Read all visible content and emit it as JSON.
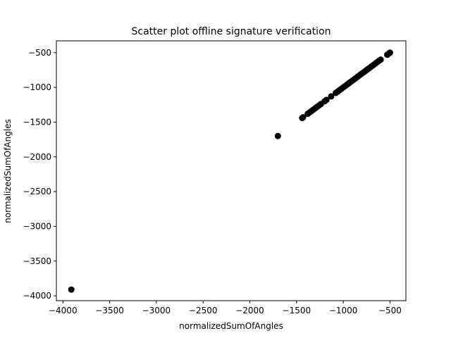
{
  "chart_data": {
    "type": "scatter",
    "title": "Scatter plot offline signature verification",
    "xlabel": "normalizedSumOfAngles",
    "ylabel": "normalizedSumOfAngles",
    "xlim": [
      -4070,
      -330
    ],
    "ylim": [
      -4070,
      -330
    ],
    "xticks": [
      -4000,
      -3500,
      -3000,
      -2500,
      -2000,
      -1500,
      -1000,
      -500
    ],
    "yticks": [
      -4000,
      -3500,
      -3000,
      -2500,
      -2000,
      -1500,
      -1000,
      -500
    ],
    "grid": false,
    "marker_color": "#000000",
    "points": [
      [
        -3910,
        -3910
      ],
      [
        -1700,
        -1700
      ],
      [
        -1440,
        -1440
      ],
      [
        -1430,
        -1430
      ],
      [
        -1380,
        -1380
      ],
      [
        -1360,
        -1360
      ],
      [
        -1340,
        -1340
      ],
      [
        -1320,
        -1320
      ],
      [
        -1300,
        -1300
      ],
      [
        -1280,
        -1280
      ],
      [
        -1260,
        -1260
      ],
      [
        -1240,
        -1240
      ],
      [
        -1200,
        -1200
      ],
      [
        -1180,
        -1180
      ],
      [
        -1130,
        -1130
      ],
      [
        -1080,
        -1080
      ],
      [
        -1060,
        -1060
      ],
      [
        -1040,
        -1040
      ],
      [
        -1020,
        -1020
      ],
      [
        -1000,
        -1000
      ],
      [
        -980,
        -980
      ],
      [
        -960,
        -960
      ],
      [
        -940,
        -940
      ],
      [
        -920,
        -920
      ],
      [
        -900,
        -900
      ],
      [
        -880,
        -880
      ],
      [
        -860,
        -860
      ],
      [
        -840,
        -840
      ],
      [
        -820,
        -820
      ],
      [
        -800,
        -800
      ],
      [
        -780,
        -780
      ],
      [
        -760,
        -760
      ],
      [
        -740,
        -740
      ],
      [
        -720,
        -720
      ],
      [
        -700,
        -700
      ],
      [
        -680,
        -680
      ],
      [
        -660,
        -660
      ],
      [
        -640,
        -640
      ],
      [
        -620,
        -620
      ],
      [
        -600,
        -600
      ],
      [
        -530,
        -530
      ],
      [
        -510,
        -510
      ],
      [
        -500,
        -500
      ]
    ]
  }
}
